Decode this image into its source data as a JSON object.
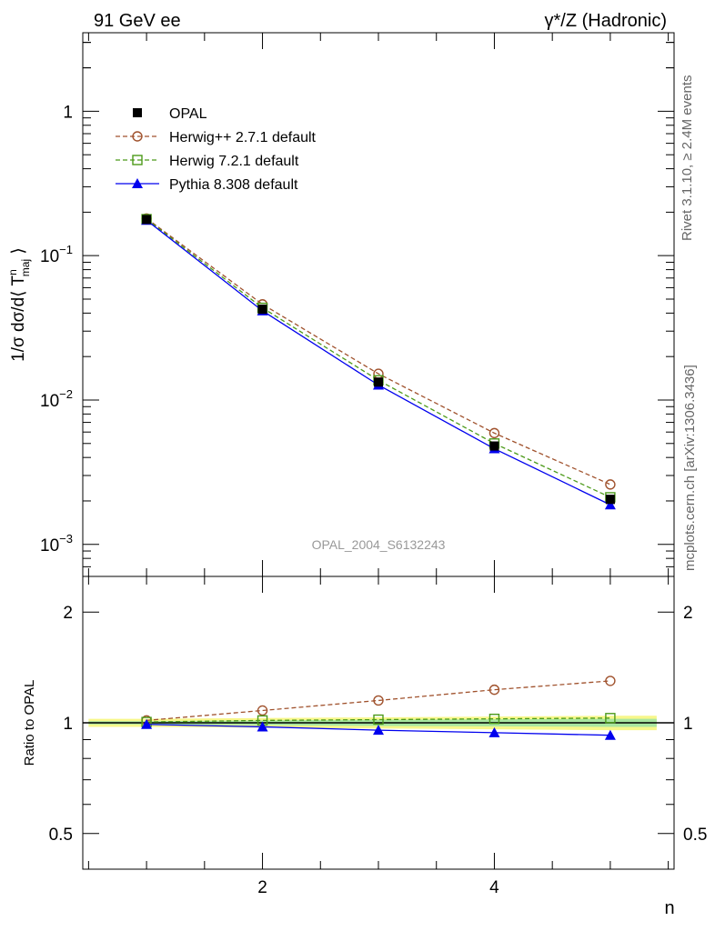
{
  "header": {
    "left_title": "91 GeV ee",
    "right_title": "γ*/Z (Hadronic)"
  },
  "side_labels": {
    "rivet": "Rivet 3.1.10, ≥ 2.4M events",
    "source": "mcplots.cern.ch [arXiv:1306.3436]"
  },
  "watermark": "OPAL_2004_S6132243",
  "chart_data": [
    {
      "type": "line",
      "panel": "main",
      "ylabel": "1/σ dσ/d⟨ T^n_maj ⟩",
      "yscale": "log",
      "ylim": [
        0.0006,
        3.5
      ],
      "xlim": [
        0.45,
        5.55
      ],
      "x": [
        1,
        2,
        3,
        4,
        5
      ],
      "yticks": [
        0.001,
        0.01,
        0.1,
        1
      ],
      "ytick_labels": [
        "10^-3",
        "10^-2",
        "10^-1",
        "1"
      ],
      "legend_position": "top-left",
      "series": [
        {
          "name": "OPAL",
          "marker": "filled-square",
          "color": "#000000",
          "line": "none",
          "values": [
            0.178,
            0.0425,
            0.0133,
            0.0048,
            0.00205
          ]
        },
        {
          "name": "Herwig++ 2.7.1 default",
          "marker": "open-circle",
          "color": "#a0522d",
          "line": "dashed",
          "values": [
            0.181,
            0.046,
            0.0152,
            0.0059,
            0.0026
          ]
        },
        {
          "name": "Herwig 7.2.1 default",
          "marker": "open-square",
          "color": "#4c9a1a",
          "line": "dashed",
          "values": [
            0.179,
            0.0435,
            0.0137,
            0.005,
            0.00212
          ]
        },
        {
          "name": "Pythia 8.308 default",
          "marker": "filled-triangle",
          "color": "#0000ee",
          "line": "solid",
          "values": [
            0.176,
            0.0415,
            0.0127,
            0.0046,
            0.00188
          ]
        }
      ]
    },
    {
      "type": "line",
      "panel": "ratio",
      "ylabel": "Ratio to OPAL",
      "xlabel": "n",
      "yscale": "log",
      "ylim": [
        0.4,
        2.5
      ],
      "xlim": [
        0.45,
        5.55
      ],
      "x": [
        1,
        2,
        3,
        4,
        5
      ],
      "xticks": [
        2,
        4
      ],
      "xtick_labels": [
        "2",
        "4"
      ],
      "yticks": [
        0.5,
        1,
        2
      ],
      "ytick_labels": [
        "0.5",
        "1",
        "2"
      ],
      "band": {
        "x": [
          0.5,
          1,
          2,
          3,
          4,
          5,
          5.4
        ],
        "lo_yellow": [
          0.975,
          0.975,
          0.97,
          0.965,
          0.96,
          0.955,
          0.955
        ],
        "hi_yellow": [
          1.025,
          1.025,
          1.03,
          1.035,
          1.04,
          1.045,
          1.045
        ],
        "lo_green": [
          0.99,
          0.99,
          0.985,
          0.98,
          0.978,
          0.975,
          0.975
        ],
        "hi_green": [
          1.01,
          1.01,
          1.015,
          1.02,
          1.022,
          1.025,
          1.025
        ]
      },
      "series": [
        {
          "name": "Herwig++ 2.7.1 default",
          "color": "#a0522d",
          "values": [
            1.015,
            1.08,
            1.15,
            1.23,
            1.3
          ]
        },
        {
          "name": "Herwig 7.2.1 default",
          "color": "#4c9a1a",
          "values": [
            1.005,
            1.015,
            1.02,
            1.025,
            1.03
          ]
        },
        {
          "name": "Pythia 8.308 default",
          "color": "#0000ee",
          "values": [
            0.99,
            0.975,
            0.955,
            0.94,
            0.925
          ]
        }
      ]
    }
  ]
}
